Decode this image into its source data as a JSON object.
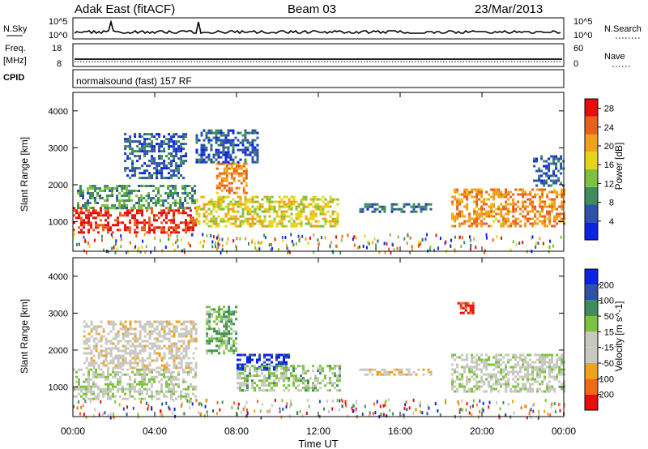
{
  "header": {
    "station": "Adak East (fitACF)",
    "beam": "Beam 03",
    "date": "23/Mar/2013"
  },
  "strip_labels": {
    "nsky": "N.Sky",
    "nsky_ticks": [
      "10^5",
      "10^0"
    ],
    "nsearch": "N.Search",
    "nsearch_ticks": [
      "10^5",
      "10^0"
    ],
    "freq": "Freq.",
    "freq_unit": "[MHz]",
    "freq_ticks": [
      "18",
      "8"
    ],
    "nave": "Nave",
    "nave_ticks": [
      "60",
      "0"
    ],
    "cpid": "CPID",
    "cpid_text": "normalsound (fast) 157 RF"
  },
  "colors": {
    "power": [
      "#0a24e6",
      "#2d52a8",
      "#3f8c5c",
      "#7cc23e",
      "#e6d418",
      "#f0a21a",
      "#e9601c",
      "#e80c0c"
    ],
    "velocity": [
      "#e80c0c",
      "#f06a14",
      "#f0a21a",
      "#c8c8c0",
      "#c8c8c0",
      "#7cc23e",
      "#3f8c5c",
      "#2d52a8",
      "#0a24e6"
    ]
  },
  "chart_data": [
    {
      "type": "heatmap",
      "panel": "power",
      "xlabel": "Time UT",
      "ylabel": "Slant Range [km]",
      "xlim": [
        0,
        24
      ],
      "ylim": [
        200,
        4500
      ],
      "x_ticks": [
        "00:00",
        "04:00",
        "08:00",
        "12:00",
        "16:00",
        "20:00",
        "00:00"
      ],
      "y_ticks": [
        "1000",
        "2000",
        "3000",
        "4000"
      ],
      "colorbar_label": "Power [dB]",
      "colorbar_ticks": [
        "4",
        "8",
        "12",
        "16",
        "20",
        "24",
        "28"
      ],
      "colorbar_range": [
        0,
        30
      ],
      "regions": [
        {
          "t0": 0.0,
          "t1": 6.0,
          "r0": 700,
          "r1": 1400,
          "value": 27
        },
        {
          "t0": 0.2,
          "t1": 6.0,
          "r0": 1400,
          "r1": 2000,
          "value": 10
        },
        {
          "t0": 2.5,
          "t1": 5.5,
          "r0": 2200,
          "r1": 3400,
          "value": 6
        },
        {
          "t0": 6.0,
          "t1": 13.0,
          "r0": 900,
          "r1": 1700,
          "value": 17
        },
        {
          "t0": 7.0,
          "t1": 8.5,
          "r0": 1800,
          "r1": 2600,
          "value": 22
        },
        {
          "t0": 6.0,
          "t1": 9.0,
          "r0": 2600,
          "r1": 3500,
          "value": 5
        },
        {
          "t0": 14.0,
          "t1": 17.5,
          "r0": 1300,
          "r1": 1500,
          "value": 7
        },
        {
          "t0": 18.5,
          "t1": 24.0,
          "r0": 900,
          "r1": 1900,
          "value": 22
        },
        {
          "t0": 22.5,
          "t1": 24.0,
          "r0": 2000,
          "r1": 2800,
          "value": 6
        }
      ]
    },
    {
      "type": "heatmap",
      "panel": "velocity",
      "xlabel": "Time UT",
      "ylabel": "Slant Range [km]",
      "xlim": [
        0,
        24
      ],
      "ylim": [
        200,
        4500
      ],
      "x_ticks": [
        "00:00",
        "04:00",
        "08:00",
        "12:00",
        "16:00",
        "20:00",
        "00:00"
      ],
      "y_ticks": [
        "1000",
        "2000",
        "3000",
        "4000"
      ],
      "colorbar_label": "Velocity [m s^-1]",
      "colorbar_ticks": [
        "200",
        "100",
        "50",
        "15",
        "-15",
        "-50",
        "-100",
        "-200"
      ],
      "colorbar_range": [
        -250,
        250
      ],
      "regions": [
        {
          "t0": 0.0,
          "t1": 6.0,
          "r0": 700,
          "r1": 1500,
          "value": 0
        },
        {
          "t0": 0.5,
          "t1": 6.0,
          "r0": 1500,
          "r1": 2800,
          "value": -40
        },
        {
          "t0": 6.5,
          "t1": 8.0,
          "r0": 1900,
          "r1": 3200,
          "value": 60
        },
        {
          "t0": 8.0,
          "t1": 10.5,
          "r0": 1500,
          "r1": 1900,
          "value": 220
        },
        {
          "t0": 8.0,
          "t1": 13.0,
          "r0": 900,
          "r1": 1600,
          "value": 40
        },
        {
          "t0": 14.0,
          "t1": 17.5,
          "r0": 1350,
          "r1": 1500,
          "value": -60
        },
        {
          "t0": 18.5,
          "t1": 24.0,
          "r0": 900,
          "r1": 1900,
          "value": 0
        },
        {
          "t0": 18.8,
          "t1": 19.6,
          "r0": 3000,
          "r1": 3300,
          "value": -220
        }
      ]
    }
  ]
}
